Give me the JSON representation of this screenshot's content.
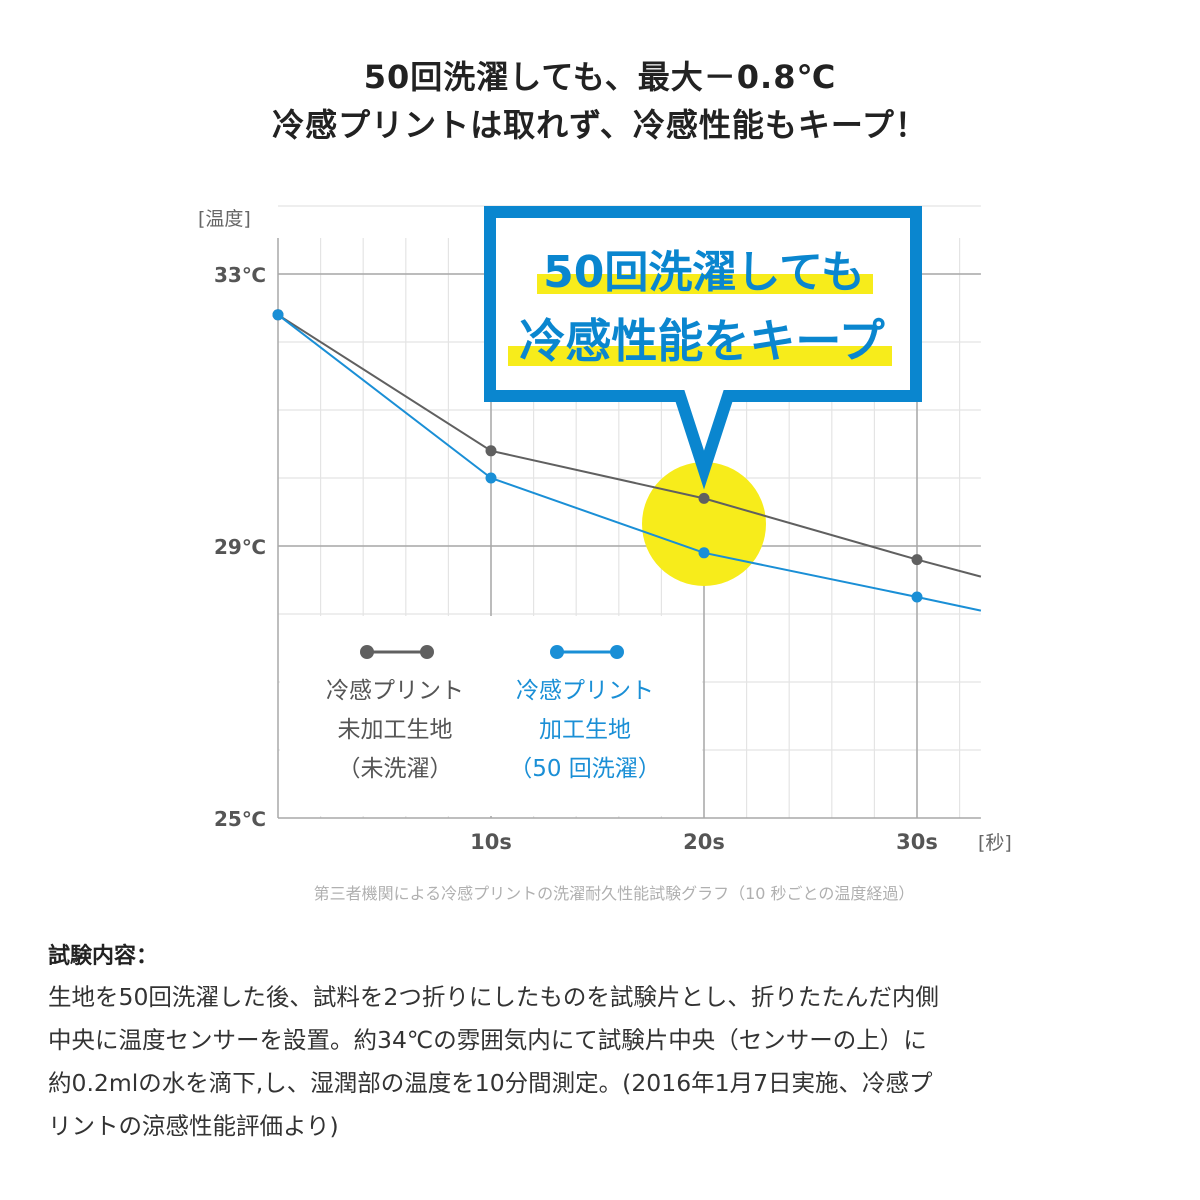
{
  "headline": {
    "line1": "50回洗濯しても、最大－0.8℃",
    "line2": "冷感プリントは取れず、冷感性能もキープ！"
  },
  "callout": {
    "line1": "50回洗濯しても",
    "line2": "冷感性能をキープ",
    "border_color": "#0a86cf",
    "highlight_color": "#f7ec1b"
  },
  "chart_data": {
    "type": "line",
    "ylabel": "[温度]",
    "xlabel": "[秒]",
    "ylim": [
      25,
      34
    ],
    "xlim": [
      0,
      33
    ],
    "y_ticks": [
      {
        "value": 33,
        "label": "33℃"
      },
      {
        "value": 29,
        "label": "29℃"
      },
      {
        "value": 25,
        "label": "25℃"
      }
    ],
    "x_ticks": [
      {
        "value": 10,
        "label": "10s"
      },
      {
        "value": 20,
        "label": "20s"
      },
      {
        "value": 30,
        "label": "30s"
      }
    ],
    "grid": true,
    "legend_placement": "bottom-left",
    "caption": "第三者機関による冷感プリントの洗濯耐久性能試験グラフ（10 秒ごとの温度経過）",
    "series": [
      {
        "name": "冷感プリント未加工生地（未洗濯）",
        "legend_lines": [
          "冷感プリント",
          "未加工生地",
          "（未洗濯）"
        ],
        "color": "#606060",
        "x": [
          0,
          10,
          20,
          30,
          33
        ],
        "y": [
          32.4,
          30.4,
          29.7,
          28.8,
          28.55
        ],
        "markers": [
          0,
          10,
          20,
          30
        ]
      },
      {
        "name": "冷感プリント加工生地（50回洗濯）",
        "legend_lines": [
          "冷感プリント",
          "加工生地",
          "（50 回洗濯）"
        ],
        "color": "#1a8fd6",
        "x": [
          0,
          10,
          20,
          30,
          33
        ],
        "y": [
          32.4,
          30.0,
          28.9,
          28.25,
          28.05
        ],
        "markers": [
          0,
          10,
          20,
          30
        ]
      }
    ]
  },
  "test": {
    "heading": "試験内容：",
    "lines": [
      "生地を50回洗濯した後、試料を2つ折りにしたものを試験片とし、折りたたんだ内側",
      "中央に温度センサーを設置。約34℃の雰囲気内にて試験片中央（センサーの上）に",
      "約0.2mlの水を滴下,し、湿潤部の温度を10分間測定。(2016年1月7日実施、冷感プ",
      "リントの涼感性能評価より)"
    ]
  }
}
